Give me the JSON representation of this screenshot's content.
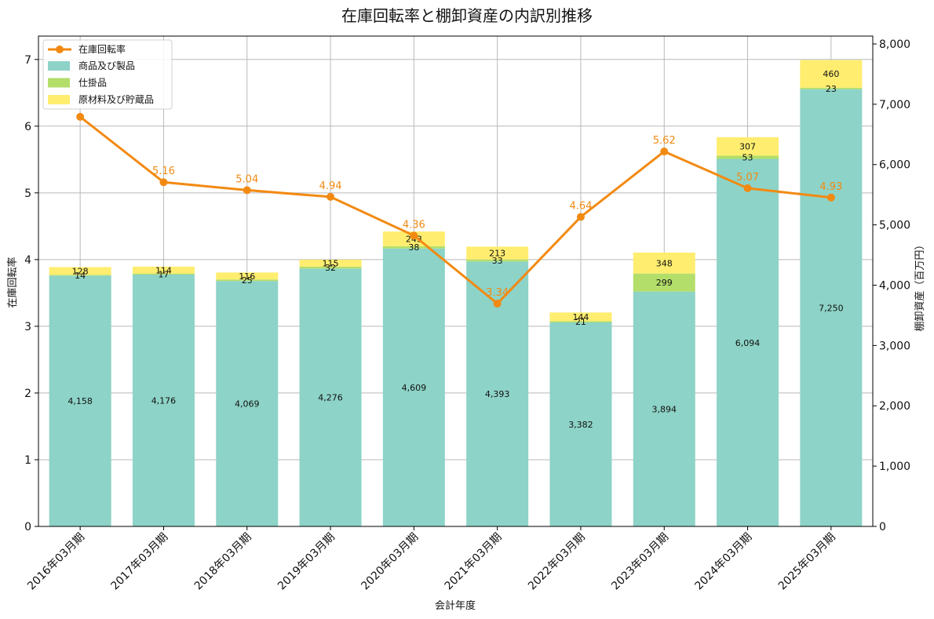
{
  "chart_data": {
    "type": "bar+line",
    "title": "在庫回転率と棚卸資産の内訳別推移",
    "xlabel": "会計年度",
    "ylabel_left": "在庫回転率",
    "ylabel_right": "棚卸資産（百万円）",
    "categories": [
      "2016年03月期",
      "2017年03月期",
      "2018年03月期",
      "2019年03月期",
      "2020年03月期",
      "2021年03月期",
      "2022年03月期",
      "2023年03月期",
      "2024年03月期",
      "2025年03月期"
    ],
    "ylim_left": [
      0,
      7.35
    ],
    "yticks_left": [
      "0",
      "1",
      "2",
      "3",
      "4",
      "5",
      "6",
      "7"
    ],
    "ylim_right": [
      0,
      8130
    ],
    "yticks_right": [
      "0",
      "1,000",
      "2,000",
      "3,000",
      "4,000",
      "5,000",
      "6,000",
      "7,000",
      "8,000"
    ],
    "line": {
      "name": "在庫回転率",
      "color": "#f28a12",
      "values": [
        6.14,
        5.16,
        5.04,
        4.94,
        4.36,
        3.34,
        4.64,
        5.62,
        5.07,
        4.93
      ],
      "labels": [
        "",
        "5.16",
        "5.04",
        "4.94",
        "4.36",
        "3.34",
        "4.64",
        "5.62",
        "5.07",
        "4.93"
      ]
    },
    "series": [
      {
        "name": "商品及び製品",
        "color": "#8dd3c7",
        "values": [
          4158,
          4176,
          4069,
          4276,
          4609,
          4393,
          3382,
          3894,
          6094,
          7250
        ],
        "labels": [
          "4,158",
          "4,176",
          "4,069",
          "4,276",
          "4,609",
          "4,393",
          "3,382",
          "3,894",
          "6,094",
          "7,250"
        ]
      },
      {
        "name": "仕掛品",
        "color": "#b3de69",
        "values": [
          14,
          17,
          25,
          32,
          38,
          33,
          21,
          299,
          53,
          23
        ],
        "labels": [
          "14",
          "17",
          "25",
          "32",
          "38",
          "33",
          "21",
          "299",
          "53",
          "23"
        ]
      },
      {
        "name": "原材料及び貯蔵品",
        "color": "#ffed6f",
        "values": [
          128,
          114,
          116,
          115,
          243,
          213,
          144,
          348,
          307,
          460
        ],
        "labels": [
          "128",
          "114",
          "116",
          "115",
          "243",
          "213",
          "144",
          "348",
          "307",
          "460"
        ]
      }
    ],
    "legend_position": "top-left"
  }
}
